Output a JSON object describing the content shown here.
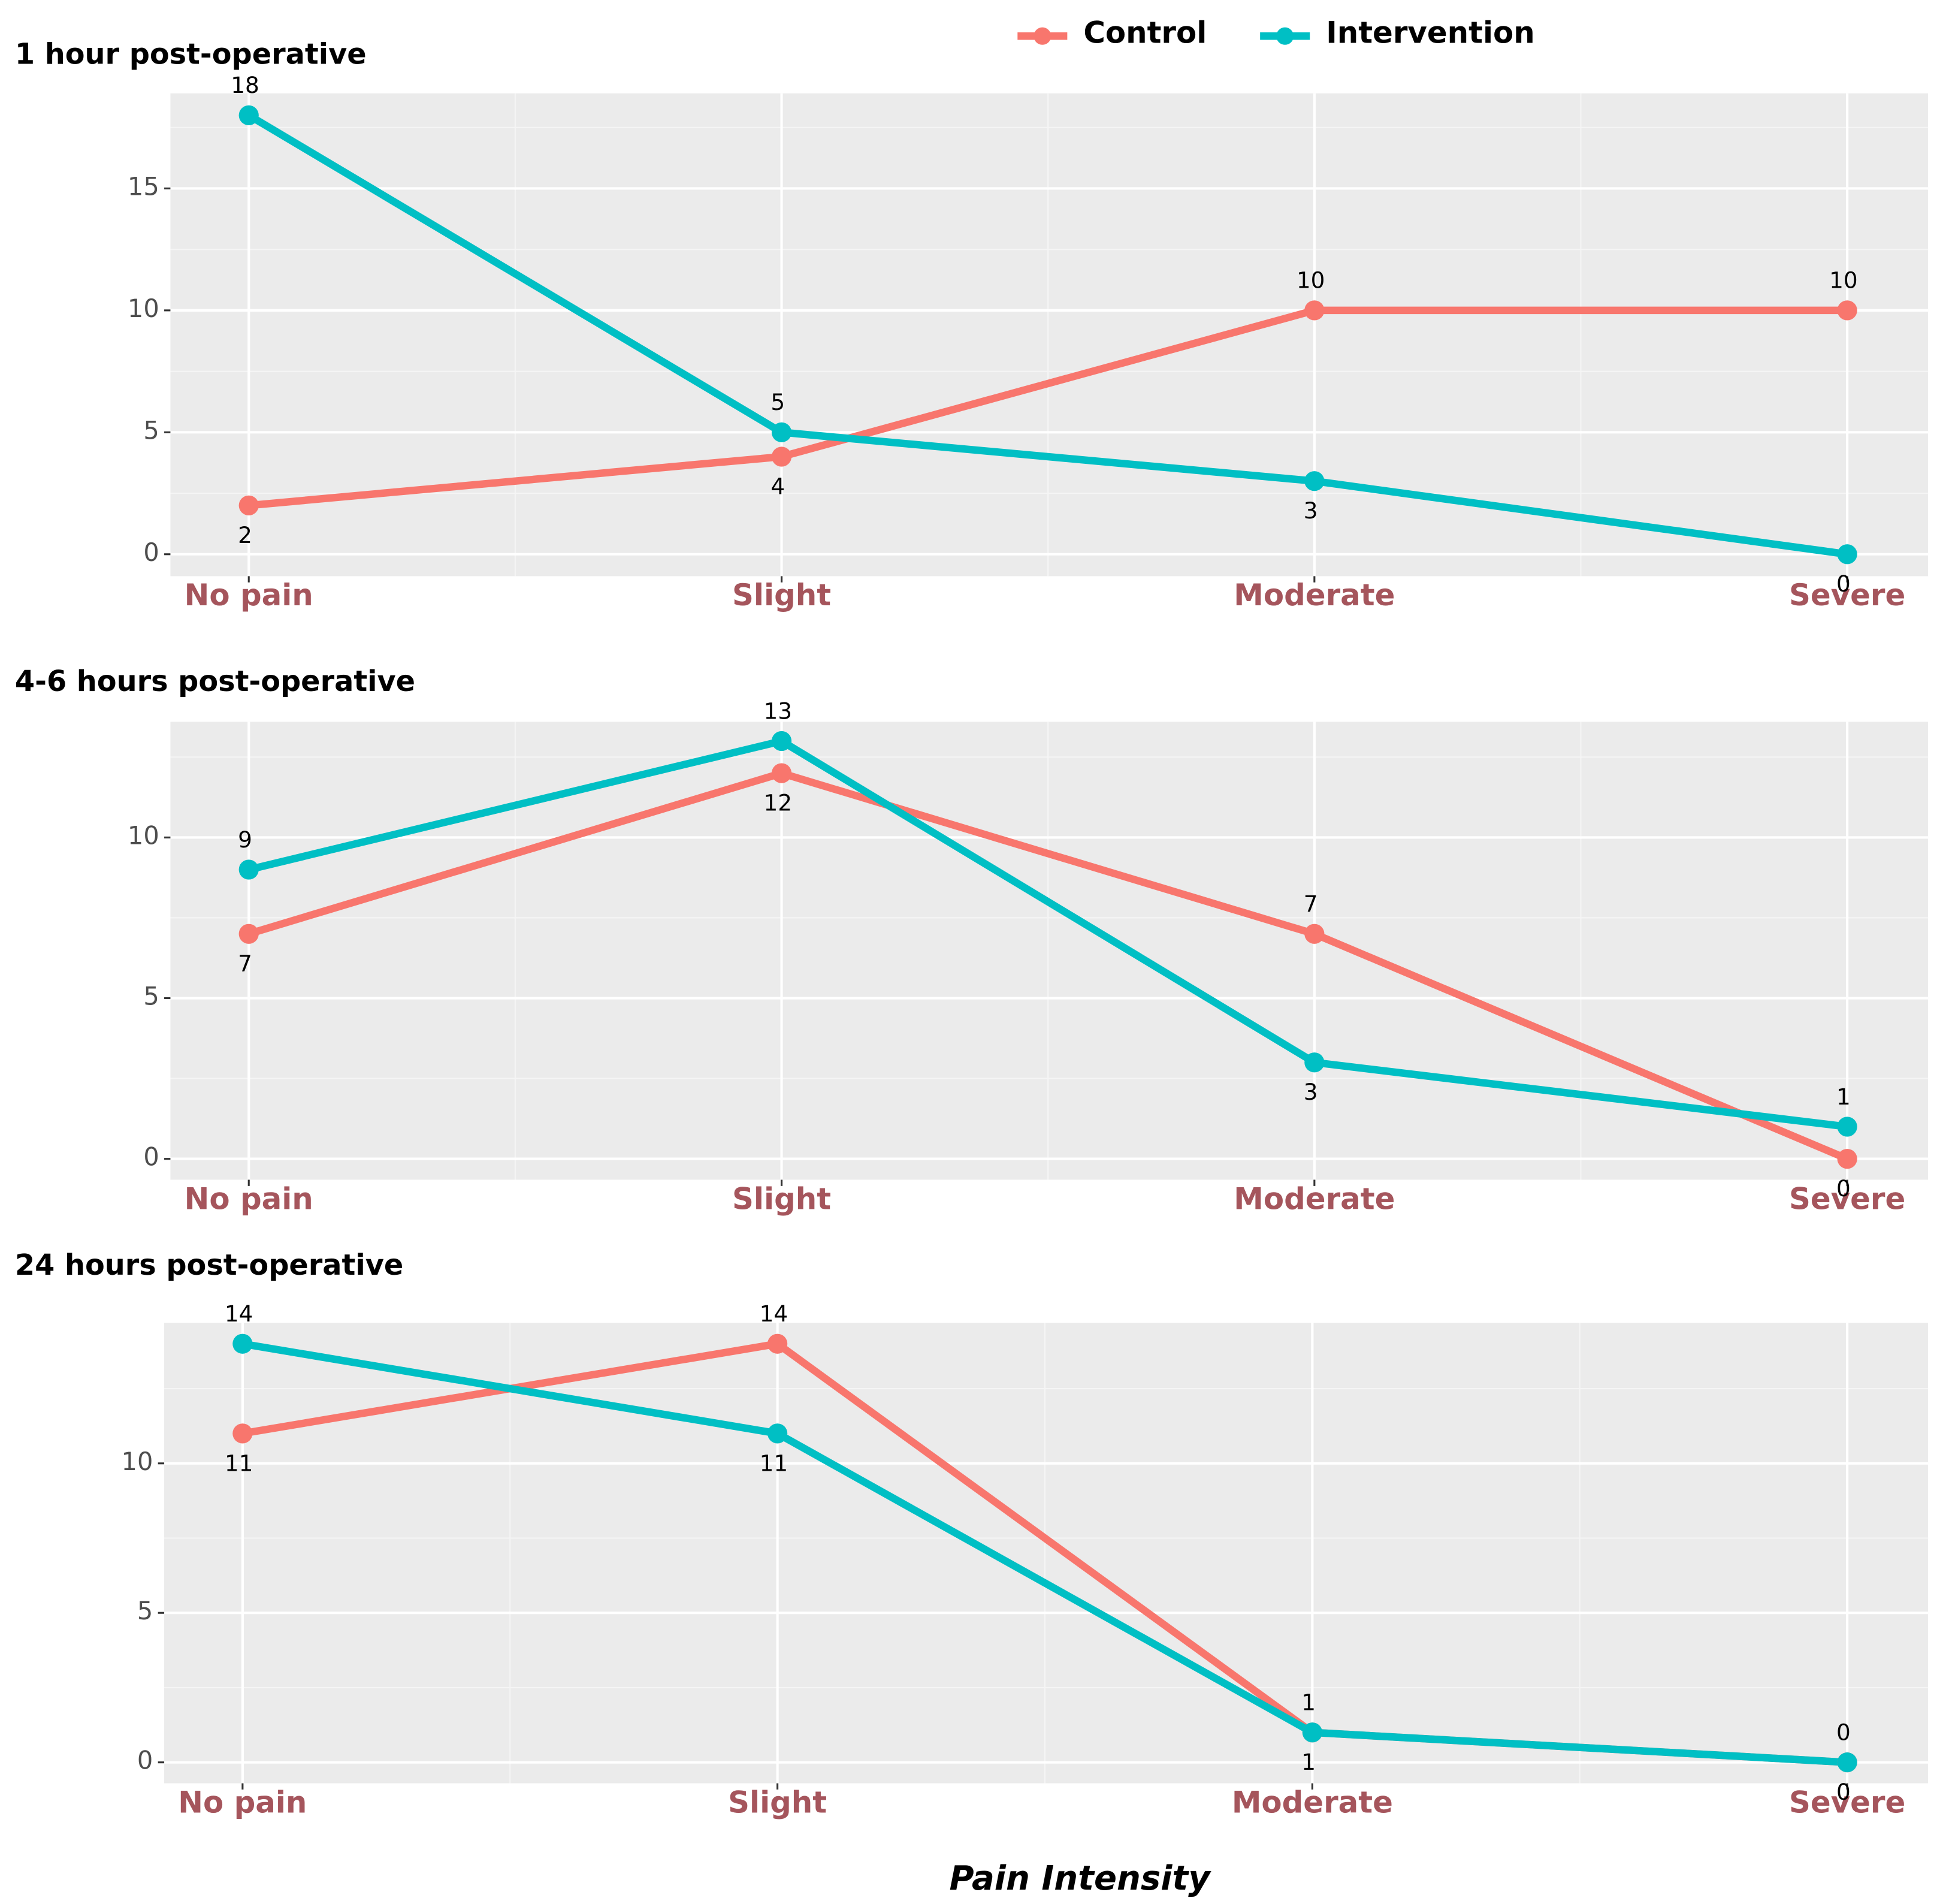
{
  "chart_data": [
    {
      "type": "line",
      "title": "1 hour post-operative",
      "categories": [
        "No pain",
        "Slight",
        "Moderate",
        "Severe"
      ],
      "series": [
        {
          "name": "Control",
          "color": "#f8766d",
          "values": [
            2,
            4,
            10,
            10
          ]
        },
        {
          "name": "Intervention",
          "color": "#00bfc4",
          "values": [
            18,
            5,
            3,
            0
          ]
        }
      ],
      "ylim": [
        -0.9,
        18.9
      ],
      "yticks": [
        0,
        5,
        10,
        15
      ],
      "grid": true
    },
    {
      "type": "line",
      "title": "4-6 hours post-operative",
      "categories": [
        "No pain",
        "Slight",
        "Moderate",
        "Severe"
      ],
      "series": [
        {
          "name": "Control",
          "color": "#f8766d",
          "values": [
            7,
            12,
            7,
            0
          ]
        },
        {
          "name": "Intervention",
          "color": "#00bfc4",
          "values": [
            9,
            13,
            3,
            1
          ]
        }
      ],
      "ylim": [
        -0.65,
        13.6
      ],
      "yticks": [
        0,
        5,
        10
      ],
      "grid": true
    },
    {
      "type": "line",
      "title": "24 hours post-operative",
      "categories": [
        "No pain",
        "Slight",
        "Moderate",
        "Severe"
      ],
      "series": [
        {
          "name": "Control",
          "color": "#f8766d",
          "values": [
            11,
            14,
            1,
            0
          ]
        },
        {
          "name": "Intervention",
          "color": "#00bfc4",
          "values": [
            14,
            11,
            1,
            0
          ]
        }
      ],
      "ylim": [
        -0.7,
        14.7
      ],
      "yticks": [
        0,
        5,
        10
      ],
      "grid": true,
      "xlabel": "Pain Intensity"
    }
  ]
}
